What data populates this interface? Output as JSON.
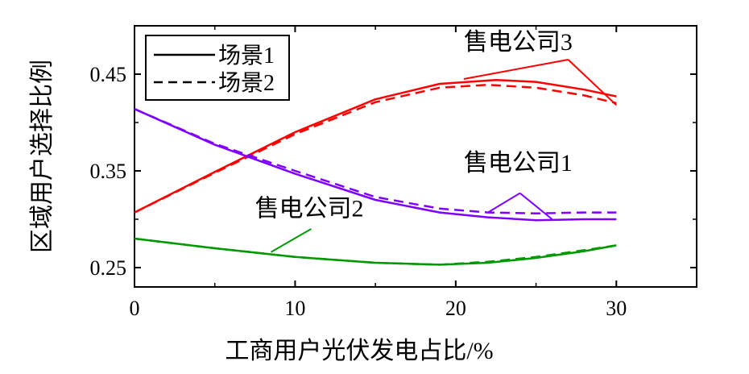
{
  "chart_data": {
    "type": "line",
    "xlabel": "工商用户光伏发电占比/%",
    "ylabel": "区域用户选择比例",
    "xlim": [
      0,
      35
    ],
    "ylim": [
      0.23,
      0.5
    ],
    "xticks": [
      0,
      10,
      20,
      30
    ],
    "xtick_labels": [
      "0",
      "10",
      "20",
      "30"
    ],
    "yticks": [
      0.25,
      0.35,
      0.45
    ],
    "ytick_labels": [
      "0.25",
      "0.35",
      "0.45"
    ],
    "grid": false,
    "legend": {
      "position": "top-left",
      "entries": [
        {
          "label": "场景1",
          "style": "solid"
        },
        {
          "label": "场景2",
          "style": "dashed"
        }
      ]
    },
    "series": [
      {
        "name": "售电公司3 场景1",
        "company": "售电公司3",
        "scenario": "场景1",
        "style": "solid",
        "color": "#ff0000",
        "x": [
          0,
          5,
          10,
          15,
          19,
          22.5,
          25,
          28,
          30
        ],
        "y": [
          0.307,
          0.349,
          0.39,
          0.424,
          0.44,
          0.444,
          0.442,
          0.434,
          0.427
        ]
      },
      {
        "name": "售电公司3 场景2",
        "company": "售电公司3",
        "scenario": "场景2",
        "style": "dashed",
        "color": "#ff0000",
        "x": [
          0,
          5,
          10,
          15,
          19,
          22,
          25,
          28,
          30
        ],
        "y": [
          0.307,
          0.348,
          0.388,
          0.421,
          0.436,
          0.439,
          0.436,
          0.428,
          0.42
        ]
      },
      {
        "name": "售电公司1 场景1",
        "company": "售电公司1",
        "scenario": "场景1",
        "style": "solid",
        "color": "#7f00ff",
        "x": [
          0,
          5,
          10,
          15,
          19,
          22,
          25,
          28,
          30
        ],
        "y": [
          0.414,
          0.377,
          0.347,
          0.32,
          0.307,
          0.302,
          0.299,
          0.3,
          0.3
        ]
      },
      {
        "name": "售电公司1 场景2",
        "company": "售电公司1",
        "scenario": "场景2",
        "style": "dashed",
        "color": "#7f00ff",
        "x": [
          0,
          5,
          10,
          15,
          19,
          22,
          25,
          28,
          30
        ],
        "y": [
          0.414,
          0.378,
          0.35,
          0.323,
          0.311,
          0.307,
          0.306,
          0.307,
          0.307
        ]
      },
      {
        "name": "售电公司2 场景1",
        "company": "售电公司2",
        "scenario": "场景1",
        "style": "solid",
        "color": "#009900",
        "x": [
          0,
          5,
          10,
          15,
          19,
          22,
          25,
          28,
          30
        ],
        "y": [
          0.28,
          0.27,
          0.261,
          0.255,
          0.253,
          0.255,
          0.26,
          0.267,
          0.273
        ]
      },
      {
        "name": "售电公司2 场景2",
        "company": "售电公司2",
        "scenario": "场景2",
        "style": "dashed",
        "color": "#009900",
        "x": [
          0,
          5,
          10,
          15,
          19,
          22,
          25,
          28,
          30
        ],
        "y": [
          0.28,
          0.27,
          0.261,
          0.255,
          0.253,
          0.256,
          0.261,
          0.268,
          0.273
        ]
      }
    ],
    "annotations": [
      {
        "text": "售电公司3",
        "color": "#ff0000",
        "text_at": [
          20.5,
          0.475
        ],
        "pointer_from": [
          27,
          0.465
        ],
        "pointer_to": [
          [
            20.5,
            0.445
          ],
          [
            30,
            0.418
          ]
        ]
      },
      {
        "text": "售电公司1",
        "color": "#7f00ff",
        "text_at": [
          20.5,
          0.35
        ],
        "pointer_from": [
          24,
          0.327
        ],
        "pointer_to": [
          [
            22,
            0.307
          ],
          [
            26,
            0.3
          ]
        ]
      },
      {
        "text": "售电公司2",
        "color": "#009900",
        "text_at": [
          7.5,
          0.303
        ],
        "pointer_from": [
          11,
          0.29
        ],
        "pointer_to": [
          [
            8.5,
            0.266
          ]
        ]
      }
    ]
  }
}
